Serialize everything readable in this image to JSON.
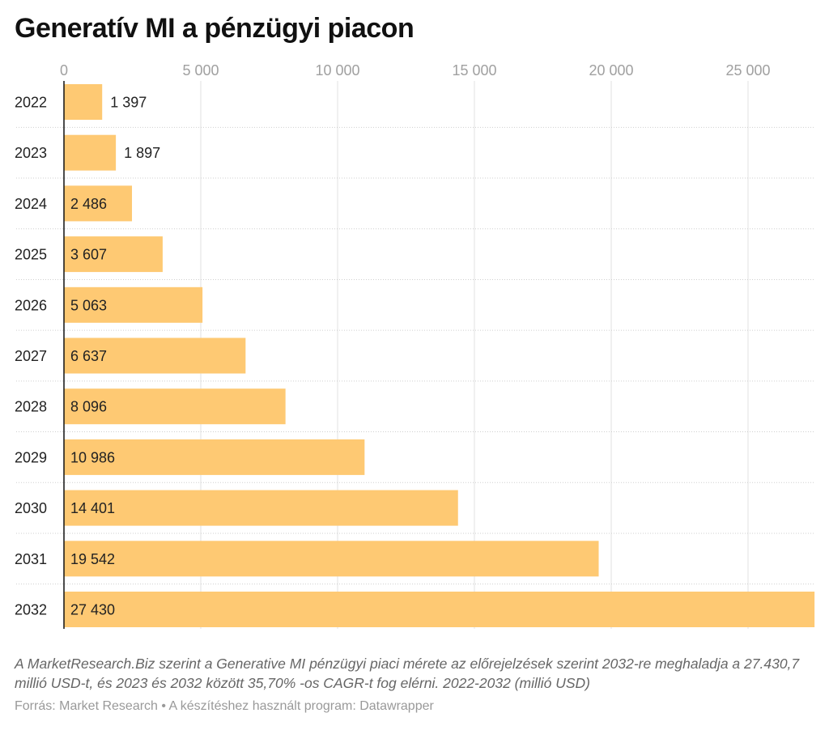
{
  "title": "Generatív MI a pénzügyi piacon",
  "chart_data": {
    "type": "bar",
    "orientation": "horizontal",
    "categories": [
      "2022",
      "2023",
      "2024",
      "2025",
      "2026",
      "2027",
      "2028",
      "2029",
      "2030",
      "2031",
      "2032"
    ],
    "values": [
      1397,
      1897,
      2486,
      3607,
      5063,
      6637,
      8096,
      10986,
      14401,
      19542,
      27430
    ],
    "value_labels": [
      "1 397",
      "1 897",
      "2 486",
      "3 607",
      "5 063",
      "6 637",
      "8 096",
      "10 986",
      "14 401",
      "19 542",
      "27 430"
    ],
    "xticks": [
      0,
      5000,
      10000,
      15000,
      20000,
      25000
    ],
    "xtick_labels": [
      "0",
      "5 000",
      "10 000",
      "15 000",
      "20 000",
      "25 000"
    ],
    "xlim": [
      0,
      27430
    ],
    "grid": true,
    "bar_color": "#fec973"
  },
  "description": "A MarketResearch.Biz szerint a Generative MI pénzügyi piaci mérete az előrejelzések szerint 2032-re meghaladja a 27.430,7 millió USD-t, és 2023 és 2032 között 35,70% -os CAGR-t fog elérni. 2022-2032 (millió USD)",
  "source": "Forrás: Market Research • A készítéshez használt program: Datawrapper"
}
